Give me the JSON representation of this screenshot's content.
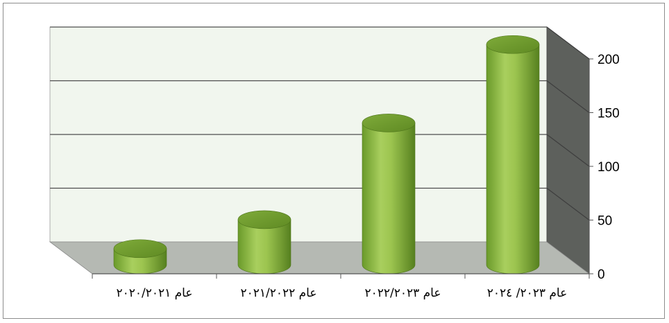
{
  "chart_data": {
    "type": "bar",
    "title": "",
    "xlabel": "",
    "ylabel": "",
    "categories": [
      "عام ٢٠٢٠/٢٠٢١",
      "عام ٢٠٢١/٢٠٢٢",
      "عام ٢٠٢٢/٢٠٢٣",
      "عام ٢٠٢٣/ ٢٠٢٤"
    ],
    "values": [
      15,
      42,
      132,
      205
    ],
    "ylim": [
      0,
      200
    ],
    "yticks": [
      0,
      50,
      100,
      150,
      200
    ],
    "y_axis_position": "right",
    "grid": true,
    "legend": "none",
    "style": "3d-cylinder",
    "colors": {
      "bar_light": "#a9cf5e",
      "bar_dark": "#5f8a23",
      "bar_top": "#6e9b2f",
      "back_wall": "#f1f6ee",
      "side_wall": "#5d605c",
      "floor": "#b5b9b3",
      "gridline": "#4d4d4d"
    }
  }
}
